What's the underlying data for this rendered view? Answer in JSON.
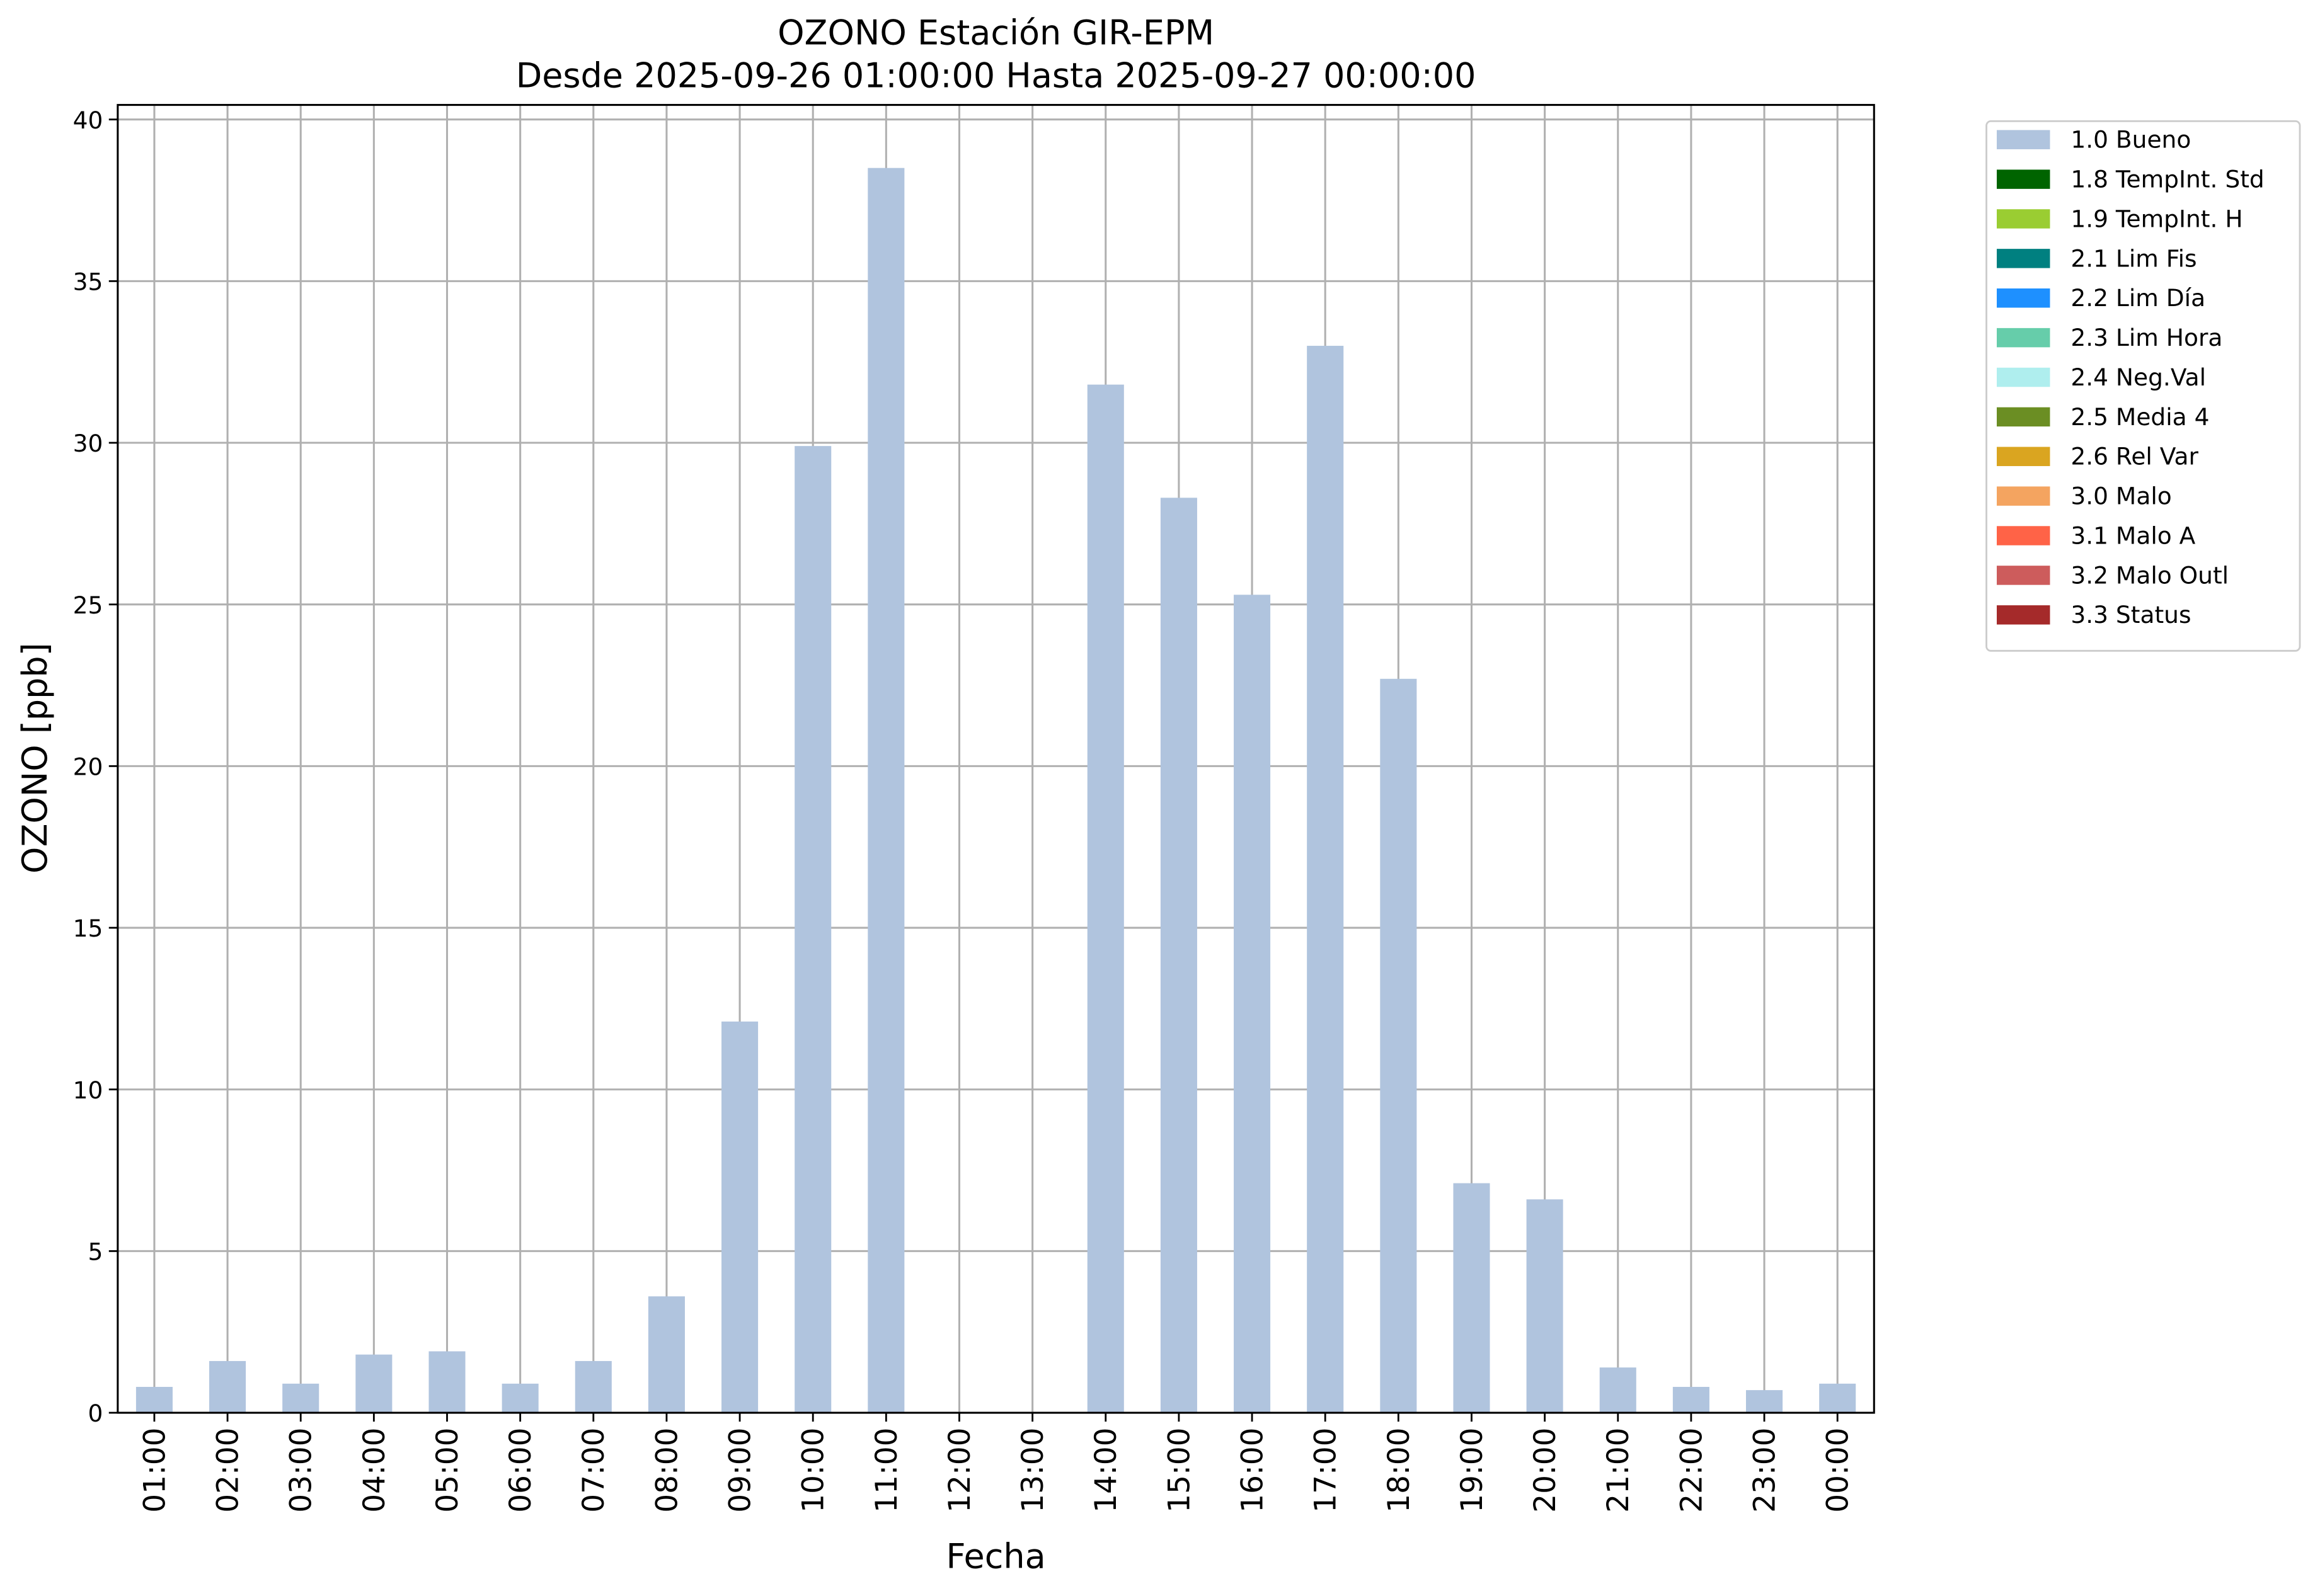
{
  "chart_data": {
    "type": "stacked_bar",
    "title": "OZONO Estación GIR-EPM",
    "subtitle": "Desde 2025-09-26 01:00:00 Hasta 2025-09-27 00:00:00",
    "x_label": "Fecha",
    "y_label": "OZONO [ppb]",
    "categories": [
      "01:00",
      "02:00",
      "03:00",
      "04:00",
      "05:00",
      "06:00",
      "07:00",
      "08:00",
      "09:00",
      "10:00",
      "11:00",
      "12:00",
      "13:00",
      "14:00",
      "15:00",
      "16:00",
      "17:00",
      "18:00",
      "19:00",
      "20:00",
      "21:00",
      "22:00",
      "23:00",
      "00:00"
    ],
    "ylim": [
      0,
      40.45
    ],
    "yticks": [
      0,
      5,
      10,
      15,
      20,
      25,
      30,
      35,
      40
    ],
    "grid": true,
    "legend": "outside upper right",
    "series": [
      {
        "name": "1.0 Bueno",
        "color": "#b0c4de",
        "values": [
          0.8,
          1.6,
          0.9,
          1.8,
          1.9,
          0.9,
          1.6,
          3.6,
          12.1,
          29.9,
          38.5,
          null,
          null,
          31.8,
          28.3,
          25.3,
          33.0,
          22.7,
          7.1,
          6.6,
          1.4,
          0.8,
          0.7,
          0.9
        ]
      },
      {
        "name": "1.8 TempInt. Std",
        "color": "#006400",
        "values": [
          null,
          null,
          null,
          null,
          null,
          null,
          null,
          null,
          null,
          null,
          null,
          null,
          null,
          null,
          null,
          null,
          null,
          null,
          null,
          null,
          null,
          null,
          null,
          null
        ]
      },
      {
        "name": "1.9 TempInt. H",
        "color": "#9acd32",
        "values": [
          null,
          null,
          null,
          null,
          null,
          null,
          null,
          null,
          null,
          null,
          null,
          null,
          null,
          null,
          null,
          null,
          null,
          null,
          null,
          null,
          null,
          null,
          null,
          null
        ]
      },
      {
        "name": "2.1 Lim Fis",
        "color": "#008080",
        "values": [
          null,
          null,
          null,
          null,
          null,
          null,
          null,
          null,
          null,
          null,
          null,
          null,
          null,
          null,
          null,
          null,
          null,
          null,
          null,
          null,
          null,
          null,
          null,
          null
        ]
      },
      {
        "name": "2.2 Lim Día",
        "color": "#1e90ff",
        "values": [
          null,
          null,
          null,
          null,
          null,
          null,
          null,
          null,
          null,
          null,
          null,
          null,
          null,
          null,
          null,
          null,
          null,
          null,
          null,
          null,
          null,
          null,
          null,
          null
        ]
      },
      {
        "name": "2.3 Lim Hora",
        "color": "#66cdaa",
        "values": [
          null,
          null,
          null,
          null,
          null,
          null,
          null,
          null,
          null,
          null,
          null,
          null,
          null,
          null,
          null,
          null,
          null,
          null,
          null,
          null,
          null,
          null,
          null,
          null
        ]
      },
      {
        "name": "2.4 Neg.Val",
        "color": "#afeeee",
        "values": [
          null,
          null,
          null,
          null,
          null,
          null,
          null,
          null,
          null,
          null,
          null,
          null,
          null,
          null,
          null,
          null,
          null,
          null,
          null,
          null,
          null,
          null,
          null,
          null
        ]
      },
      {
        "name": "2.5 Media 4",
        "color": "#6b8e23",
        "values": [
          null,
          null,
          null,
          null,
          null,
          null,
          null,
          null,
          null,
          null,
          null,
          null,
          null,
          null,
          null,
          null,
          null,
          null,
          null,
          null,
          null,
          null,
          null,
          null
        ]
      },
      {
        "name": "2.6 Rel Var",
        "color": "#daa520",
        "values": [
          null,
          null,
          null,
          null,
          null,
          null,
          null,
          null,
          null,
          null,
          null,
          null,
          null,
          null,
          null,
          null,
          null,
          null,
          null,
          null,
          null,
          null,
          null,
          null
        ]
      },
      {
        "name": "3.0 Malo",
        "color": "#f4a460",
        "values": [
          null,
          null,
          null,
          null,
          null,
          null,
          null,
          null,
          null,
          null,
          null,
          null,
          null,
          null,
          null,
          null,
          null,
          null,
          null,
          null,
          null,
          null,
          null,
          null
        ]
      },
      {
        "name": "3.1 Malo A",
        "color": "#ff6347",
        "values": [
          null,
          null,
          null,
          null,
          null,
          null,
          null,
          null,
          null,
          null,
          null,
          null,
          null,
          null,
          null,
          null,
          null,
          null,
          null,
          null,
          null,
          null,
          null,
          null
        ]
      },
      {
        "name": "3.2 Malo Outl",
        "color": "#cd5c5c",
        "values": [
          null,
          null,
          null,
          null,
          null,
          null,
          null,
          null,
          null,
          null,
          null,
          null,
          null,
          null,
          null,
          null,
          null,
          null,
          null,
          null,
          null,
          null,
          null,
          null
        ]
      },
      {
        "name": "3.3 Status",
        "color": "#a52a2a",
        "values": [
          null,
          null,
          null,
          null,
          null,
          null,
          null,
          null,
          null,
          null,
          null,
          null,
          null,
          null,
          null,
          null,
          null,
          null,
          null,
          null,
          null,
          null,
          null,
          null
        ]
      }
    ]
  }
}
